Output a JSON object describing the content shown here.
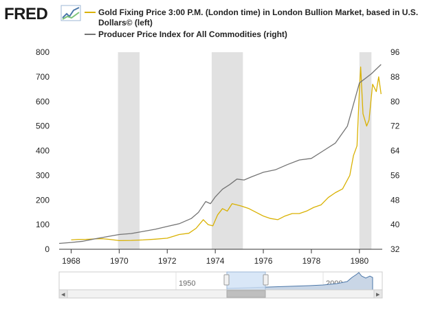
{
  "logo": {
    "text": "FRED"
  },
  "colors": {
    "gold": "#D9B100",
    "ppi": "#737373",
    "recession": "#E1E1E1",
    "axis": "#333333",
    "navigator": "#4A76A8"
  },
  "legend": {
    "gold_line1": "Gold Fixing Price 3:00 P.M. (London time) in London Bullion Market, based in U.S.",
    "gold_line2": "Dollars© (left)",
    "ppi": "Producer Price Index for All Commodities (right)"
  },
  "chart_data": {
    "type": "line",
    "title": "",
    "xlabel": "",
    "ylabel": "",
    "x_range": [
      1967.5,
      1980.95
    ],
    "ylim_left": [
      0,
      800
    ],
    "ylim_right": [
      32,
      96
    ],
    "x_ticks": [
      "1968",
      "1970",
      "1972",
      "1974",
      "1976",
      "1978",
      "1980"
    ],
    "y_ticks_left": [
      "0",
      "100",
      "200",
      "300",
      "400",
      "500",
      "600",
      "700",
      "800"
    ],
    "y_ticks_right": [
      "32",
      "40",
      "48",
      "56",
      "64",
      "72",
      "80",
      "88",
      "96"
    ],
    "recessions": [
      [
        1969.95,
        1970.85
      ],
      [
        1973.85,
        1975.15
      ],
      [
        1980.0,
        1980.5
      ]
    ],
    "series": [
      {
        "name": "Gold Fixing Price 3:00 P.M. (London time) in London Bullion Market, based in U.S. Dollars (left)",
        "axis": "left",
        "x": [
          1968.0,
          1968.3,
          1968.6,
          1969.0,
          1969.3,
          1969.6,
          1970.0,
          1970.5,
          1971.0,
          1971.5,
          1972.0,
          1972.5,
          1972.9,
          1973.2,
          1973.5,
          1973.7,
          1973.9,
          1974.1,
          1974.3,
          1974.5,
          1974.7,
          1974.9,
          1975.1,
          1975.4,
          1975.7,
          1976.0,
          1976.3,
          1976.6,
          1976.9,
          1977.2,
          1977.5,
          1977.8,
          1978.1,
          1978.4,
          1978.7,
          1979.0,
          1979.3,
          1979.6,
          1979.75,
          1979.9,
          1980.0,
          1980.05,
          1980.15,
          1980.3,
          1980.4,
          1980.55,
          1980.7,
          1980.8,
          1980.9
        ],
        "values": [
          38,
          40,
          40,
          42,
          43,
          40,
          35,
          36,
          38,
          41,
          45,
          60,
          65,
          85,
          120,
          100,
          95,
          140,
          165,
          155,
          185,
          180,
          175,
          165,
          150,
          135,
          125,
          120,
          135,
          145,
          145,
          155,
          170,
          180,
          210,
          230,
          245,
          300,
          380,
          420,
          650,
          740,
          550,
          500,
          525,
          670,
          640,
          700,
          630
        ]
      },
      {
        "name": "Producer Price Index for All Commodities (right)",
        "axis": "right",
        "x": [
          1967.5,
          1968.0,
          1968.5,
          1969.0,
          1969.5,
          1970.0,
          1970.5,
          1971.0,
          1971.5,
          1972.0,
          1972.5,
          1973.0,
          1973.3,
          1973.6,
          1973.8,
          1974.0,
          1974.3,
          1974.6,
          1974.9,
          1975.2,
          1975.5,
          1976.0,
          1976.5,
          1977.0,
          1977.5,
          1978.0,
          1978.5,
          1979.0,
          1979.5,
          1980.0,
          1980.5,
          1980.9
        ],
        "values": [
          33.9,
          34.2,
          34.6,
          35.4,
          36.1,
          36.8,
          37.1,
          37.8,
          38.5,
          39.4,
          40.3,
          42.0,
          44.0,
          47.5,
          46.8,
          49.0,
          51.5,
          53.0,
          54.8,
          54.5,
          55.5,
          57.0,
          57.8,
          59.5,
          61.0,
          61.5,
          64.0,
          66.5,
          72.0,
          86.0,
          89.0,
          92.0
        ]
      }
    ]
  },
  "navigator": {
    "year_1950": "1950",
    "year_2000": "2000",
    "left_arrow": "◂",
    "right_arrow": "▸"
  }
}
